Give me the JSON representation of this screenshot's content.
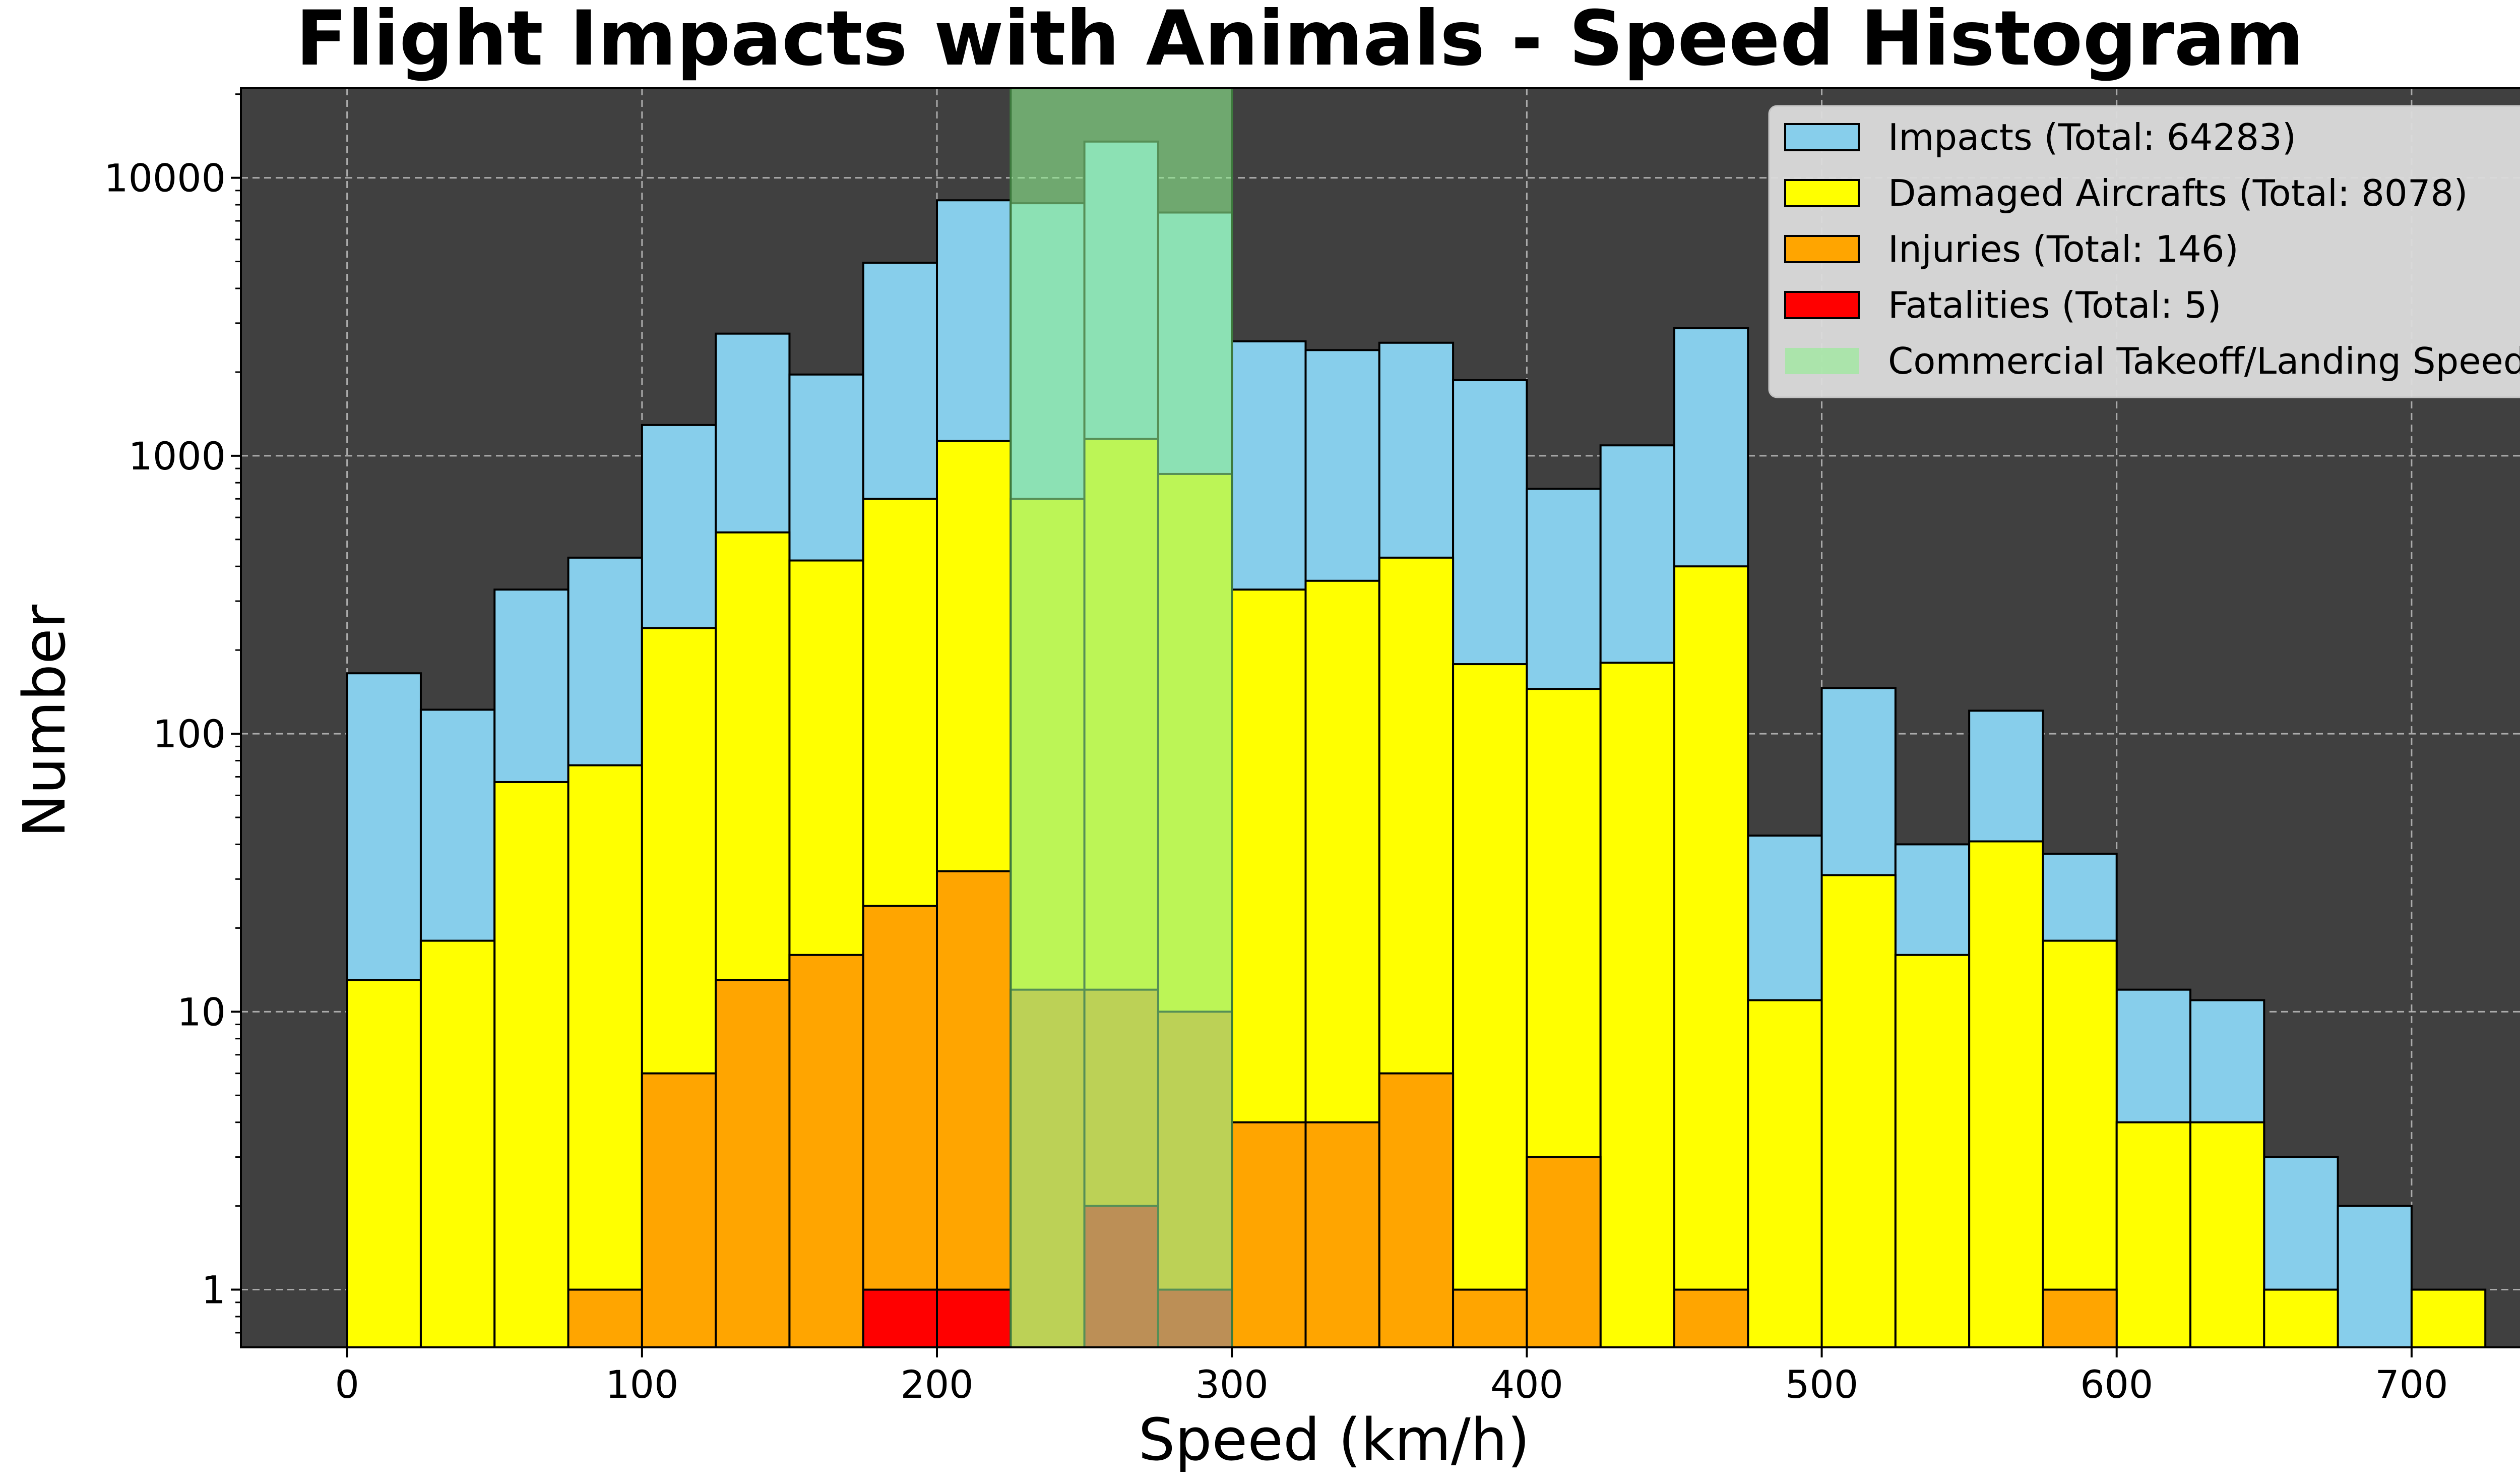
{
  "chart_data": {
    "type": "bar",
    "title": "Flight Impacts with Animals - Speed Histogram",
    "xlabel": "Speed (km/h)",
    "ylabel": "Number",
    "x_scale": "linear",
    "y_scale": "log",
    "xlim": [
      -36,
      760
    ],
    "ylim": [
      0.62,
      21000
    ],
    "x_ticks": [
      0,
      100,
      200,
      300,
      400,
      500,
      600,
      700
    ],
    "x_tick_labels": [
      "0",
      "100",
      "200",
      "300",
      "400",
      "500",
      "600",
      "700"
    ],
    "y_ticks": [
      1,
      10,
      100,
      1000,
      10000
    ],
    "y_tick_labels": [
      "1",
      "10",
      "100",
      "1000",
      "10000"
    ],
    "grid": true,
    "legend_position": "top-right",
    "bin_edges": [
      0,
      25,
      50,
      75,
      100,
      125,
      150,
      175,
      200,
      225,
      250,
      275,
      300,
      325,
      350,
      375,
      400,
      425,
      450,
      475,
      500,
      525,
      550,
      575,
      600,
      625,
      650,
      675,
      700,
      725
    ],
    "series": [
      {
        "name": "Impacts (Total: 64283)",
        "color": "#87ceeb",
        "values": [
          165,
          122,
          330,
          430,
          1290,
          2750,
          1960,
          4950,
          8300,
          8100,
          13500,
          7500,
          2580,
          2400,
          2550,
          1870,
          760,
          1090,
          2880,
          43,
          146,
          40,
          121,
          37,
          12,
          11,
          3,
          2,
          0
        ]
      },
      {
        "name": "Damaged Aircrafts (Total: 8078)",
        "color": "#ffff00",
        "values": [
          13,
          18,
          67,
          77,
          240,
          530,
          420,
          700,
          1130,
          700,
          1150,
          860,
          330,
          355,
          430,
          178,
          145,
          180,
          400,
          11,
          31,
          16,
          41,
          18,
          4,
          4,
          1,
          0,
          1
        ]
      },
      {
        "name": "Injuries (Total: 146)",
        "color": "#ffa500",
        "values": [
          0,
          0,
          0,
          1,
          6,
          13,
          16,
          24,
          32,
          12,
          12,
          10,
          4,
          4,
          6,
          1,
          3,
          0,
          1,
          0,
          0,
          0,
          0,
          1,
          0,
          0,
          0,
          0,
          0
        ]
      },
      {
        "name": "Fatalities (Total: 5)",
        "color": "#ff0000",
        "values": [
          0,
          0,
          0,
          0,
          0,
          0,
          0,
          1,
          1,
          0,
          2,
          1,
          0,
          0,
          0,
          0,
          0,
          0,
          0,
          0,
          0,
          0,
          0,
          0,
          0,
          0,
          0,
          0,
          0
        ]
      }
    ],
    "shaded_region": {
      "name": "Commercial Takeoff/Landing Speed",
      "x_range": [
        225,
        300
      ],
      "color": "#90ee90",
      "alpha": 0.6
    },
    "background_color": "#404040"
  }
}
